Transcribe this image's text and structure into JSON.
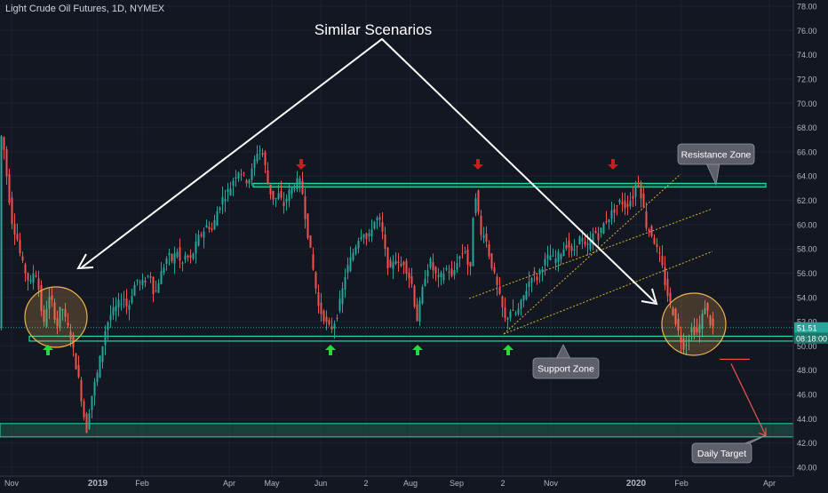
{
  "chart_title": "Light Crude Oil Futures, 1D, NYMEX",
  "chart_data": {
    "type": "candlestick",
    "title": "Light Crude Oil Futures, 1D, NYMEX",
    "x_ticks": [
      "Nov",
      "2019",
      "Feb",
      "Apr",
      "May",
      "Jun",
      "2",
      "Aug",
      "Sep",
      "2",
      "Nov",
      "2020",
      "Feb",
      "Apr"
    ],
    "ylim": [
      40,
      78
    ],
    "y_ticks": [
      40.0,
      42.0,
      44.0,
      46.0,
      48.0,
      50.0,
      52.0,
      54.0,
      56.0,
      58.0,
      60.0,
      62.0,
      64.0,
      66.0,
      68.0,
      70.0,
      72.0,
      74.0,
      76.0,
      78.0
    ],
    "last_price": "51.51",
    "countdown": "08:18:00",
    "price_path": [
      [
        0,
        68.0
      ],
      [
        5,
        66.5
      ],
      [
        10,
        63
      ],
      [
        15,
        60
      ],
      [
        20,
        59
      ],
      [
        25,
        57
      ],
      [
        30,
        56
      ],
      [
        35,
        55
      ],
      [
        40,
        56.5
      ],
      [
        45,
        54.5
      ],
      [
        50,
        51.5
      ],
      [
        55,
        54
      ],
      [
        60,
        53.5
      ],
      [
        65,
        51.5
      ],
      [
        70,
        53.5
      ],
      [
        75,
        52
      ],
      [
        80,
        51
      ],
      [
        85,
        49
      ],
      [
        90,
        47
      ],
      [
        95,
        44.5
      ],
      [
        98,
        42.8
      ],
      [
        102,
        45
      ],
      [
        106,
        46.5
      ],
      [
        110,
        47.5
      ],
      [
        115,
        49.5
      ],
      [
        120,
        51.5
      ],
      [
        125,
        52.5
      ],
      [
        130,
        53
      ],
      [
        135,
        53.5
      ],
      [
        140,
        54
      ],
      [
        145,
        53
      ],
      [
        150,
        54.5
      ],
      [
        155,
        55.5
      ],
      [
        160,
        55
      ],
      [
        165,
        55.5
      ],
      [
        170,
        56
      ],
      [
        175,
        54
      ],
      [
        180,
        55.5
      ],
      [
        185,
        56.5
      ],
      [
        190,
        57.5
      ],
      [
        195,
        57
      ],
      [
        200,
        58
      ],
      [
        205,
        56.5
      ],
      [
        210,
        57.5
      ],
      [
        215,
        57
      ],
      [
        220,
        58
      ],
      [
        225,
        59
      ],
      [
        230,
        59.5
      ],
      [
        235,
        60
      ],
      [
        240,
        59.5
      ],
      [
        245,
        61
      ],
      [
        250,
        62
      ],
      [
        255,
        62.5
      ],
      [
        260,
        63
      ],
      [
        265,
        64
      ],
      [
        270,
        64.5
      ],
      [
        275,
        64
      ],
      [
        280,
        63.5
      ],
      [
        285,
        64.5
      ],
      [
        290,
        66
      ],
      [
        294,
        66.2
      ],
      [
        298,
        65.5
      ],
      [
        302,
        63.5
      ],
      [
        306,
        62.5
      ],
      [
        310,
        62
      ],
      [
        315,
        62.5
      ],
      [
        320,
        61.5
      ],
      [
        325,
        62.5
      ],
      [
        330,
        63
      ],
      [
        335,
        63.5
      ],
      [
        340,
        63.5
      ],
      [
        345,
        60.5
      ],
      [
        350,
        58
      ],
      [
        355,
        55.5
      ],
      [
        360,
        53
      ],
      [
        365,
        52.5
      ],
      [
        370,
        51.5
      ],
      [
        375,
        51.5
      ],
      [
        380,
        52.5
      ],
      [
        385,
        54
      ],
      [
        390,
        56
      ],
      [
        395,
        57
      ],
      [
        400,
        58
      ],
      [
        405,
        59
      ],
      [
        410,
        59.5
      ],
      [
        415,
        58.5
      ],
      [
        420,
        60
      ],
      [
        425,
        60.5
      ],
      [
        430,
        60
      ],
      [
        435,
        57.5
      ],
      [
        440,
        56
      ],
      [
        445,
        57.5
      ],
      [
        450,
        56.5
      ],
      [
        455,
        57
      ],
      [
        460,
        56
      ],
      [
        465,
        55
      ],
      [
        470,
        52
      ],
      [
        475,
        54
      ],
      [
        480,
        56
      ],
      [
        485,
        57
      ],
      [
        490,
        56
      ],
      [
        495,
        55.5
      ],
      [
        500,
        56
      ],
      [
        505,
        56.5
      ],
      [
        510,
        55.5
      ],
      [
        515,
        57
      ],
      [
        520,
        57.5
      ],
      [
        525,
        58
      ],
      [
        530,
        55.5
      ],
      [
        535,
        63
      ],
      [
        538,
        62
      ],
      [
        542,
        59
      ],
      [
        546,
        59.5
      ],
      [
        550,
        58
      ],
      [
        555,
        56.5
      ],
      [
        560,
        55
      ],
      [
        565,
        53.5
      ],
      [
        570,
        52
      ],
      [
        575,
        53
      ],
      [
        580,
        52.5
      ],
      [
        585,
        53
      ],
      [
        590,
        54
      ],
      [
        595,
        55
      ],
      [
        600,
        56
      ],
      [
        605,
        55.5
      ],
      [
        610,
        56.5
      ],
      [
        615,
        57
      ],
      [
        620,
        57.5
      ],
      [
        625,
        57
      ],
      [
        630,
        57.5
      ],
      [
        635,
        58
      ],
      [
        640,
        58.5
      ],
      [
        645,
        57.5
      ],
      [
        650,
        58.5
      ],
      [
        655,
        59
      ],
      [
        660,
        58
      ],
      [
        665,
        58.5
      ],
      [
        670,
        59.5
      ],
      [
        675,
        59
      ],
      [
        680,
        60
      ],
      [
        685,
        60.5
      ],
      [
        690,
        61
      ],
      [
        695,
        61.5
      ],
      [
        700,
        62
      ],
      [
        705,
        61.5
      ],
      [
        710,
        62
      ],
      [
        715,
        62.5
      ],
      [
        718,
        64
      ],
      [
        721,
        63
      ],
      [
        724,
        62
      ],
      [
        728,
        60
      ],
      [
        732,
        59.5
      ],
      [
        736,
        59
      ],
      [
        740,
        58
      ],
      [
        745,
        57
      ],
      [
        750,
        55
      ],
      [
        755,
        53.5
      ],
      [
        760,
        52.5
      ],
      [
        765,
        51
      ],
      [
        770,
        50
      ],
      [
        775,
        50.5
      ],
      [
        780,
        51.5
      ],
      [
        785,
        51
      ],
      [
        790,
        52
      ],
      [
        795,
        53.5
      ],
      [
        800,
        52
      ],
      [
        803,
        51.5
      ]
    ],
    "annotations": {
      "main_title": "Similar Scenarios",
      "resistance_label": "Resistance Zone",
      "support_label": "Support Zone",
      "target_label": "Daily Target"
    },
    "levels": {
      "resistance_zone": [
        63.1,
        63.4
      ],
      "support_zone": [
        50.4,
        50.8
      ],
      "target_zone": [
        42.5,
        43.6
      ],
      "last_price_line": 51.51,
      "target_start_price": 48.9,
      "target_end_price": 42.6
    },
    "colors": {
      "up": "#26a69a",
      "down": "#ef5350",
      "background": "#131722",
      "zone_border": "#26d9a9",
      "zone_fill": "#1f5d4a",
      "circle": "#f0b34e",
      "channel": "#d6b52c",
      "text": "#d1d4dc",
      "callout_bg": "#5d606b",
      "arrow_up": "#2ad83c",
      "arrow_down": "#c41e1e",
      "last_price_tag": "#26a69a",
      "countdown_tag": "#1c7568"
    }
  }
}
